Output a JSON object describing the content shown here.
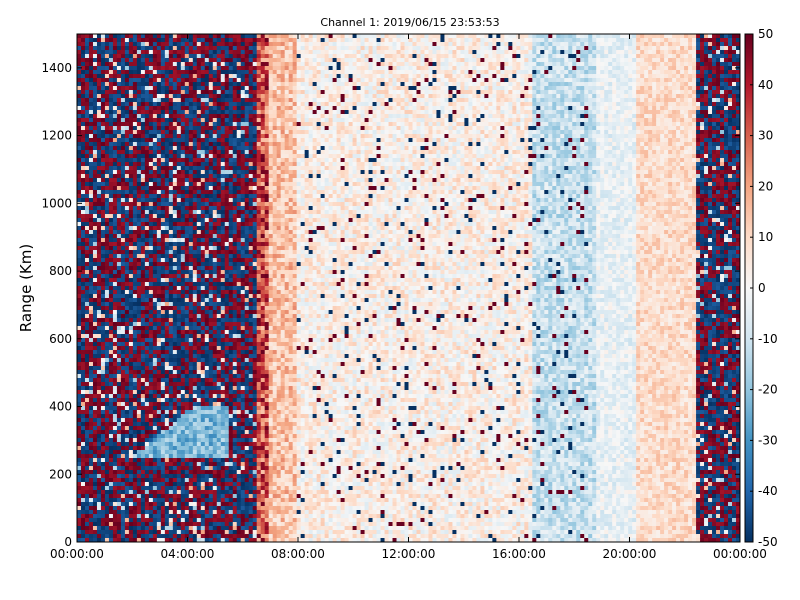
{
  "chart_data": {
    "type": "heatmap",
    "title": "Channel 1: 2019/06/15 23:53:53",
    "xlabel": "",
    "ylabel": "Range (Km)",
    "x_ticks": [
      "00:00:00",
      "04:00:00",
      "08:00:00",
      "12:00:00",
      "16:00:00",
      "20:00:00",
      "00:00:00"
    ],
    "x_range_hours": [
      0,
      24
    ],
    "y_ticks": [
      0,
      200,
      400,
      600,
      800,
      1000,
      1200,
      1400
    ],
    "ylim": [
      0,
      1500
    ],
    "colorbar": {
      "ticks": [
        50,
        40,
        30,
        20,
        10,
        0,
        -10,
        -20,
        -30,
        -40,
        -50
      ],
      "range": [
        -50,
        50
      ],
      "colors": [
        "#053061",
        "#2166ac",
        "#4393c3",
        "#92c5de",
        "#d1e5f0",
        "#f7f7f7",
        "#fddbc7",
        "#f4a582",
        "#d6604d",
        "#b2182b",
        "#67001f"
      ]
    },
    "grid": false,
    "legend": "none",
    "value_bands": [
      {
        "from_hour": 0.0,
        "to_hour": 6.5,
        "mean": 0,
        "spread": 100
      },
      {
        "from_hour": 6.5,
        "to_hour": 7.0,
        "mean": 32,
        "spread": 18
      },
      {
        "from_hour": 7.0,
        "to_hour": 8.0,
        "mean": 14,
        "spread": 10
      },
      {
        "from_hour": 8.0,
        "to_hour": 16.5,
        "mean": 3,
        "spread": 10
      },
      {
        "from_hour": 16.5,
        "to_hour": 18.8,
        "mean": -11,
        "spread": 9
      },
      {
        "from_hour": 18.8,
        "to_hour": 20.3,
        "mean": -4,
        "spread": 7
      },
      {
        "from_hour": 20.3,
        "to_hour": 22.4,
        "mean": 9,
        "spread": 7
      },
      {
        "from_hour": 22.4,
        "to_hour": 24.0,
        "mean": 0,
        "spread": 100
      }
    ],
    "patch": {
      "from_hour": 2.0,
      "to_hour": 5.5,
      "from_range": 250,
      "to_range": 400,
      "mean": -22
    }
  }
}
